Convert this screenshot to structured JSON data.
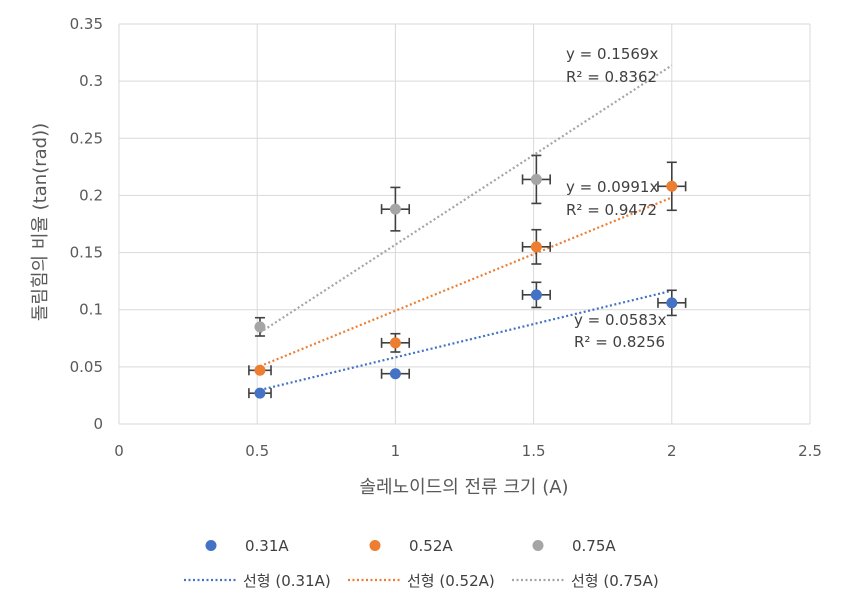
{
  "chart_data": {
    "type": "scatter",
    "title": "",
    "xlabel": "솔레노이드의 전류 크기 (A)",
    "ylabel": "돌림힘의 비율 (tan(rad))",
    "xlim": [
      0,
      2.5
    ],
    "ylim": [
      0,
      0.35
    ],
    "x_ticks": [
      "0",
      "0.5",
      "1",
      "1.5",
      "2",
      "2.5"
    ],
    "y_ticks": [
      "0",
      "0.05",
      "0.1",
      "0.15",
      "0.2",
      "0.25",
      "0.3",
      "0.35"
    ],
    "x_tick_values": [
      0,
      0.5,
      1,
      1.5,
      2,
      2.5
    ],
    "y_tick_values": [
      0,
      0.05,
      0.1,
      0.15,
      0.2,
      0.25,
      0.3,
      0.35
    ],
    "grid": true,
    "legend_position": "bottom",
    "series": [
      {
        "name": "0.31A",
        "color": "#4472C4",
        "points": [
          {
            "x": 0.51,
            "y": 0.027,
            "xerr": 0.04,
            "yerr": 0
          },
          {
            "x": 1.0,
            "y": 0.044,
            "xerr": 0.05,
            "yerr": 0
          },
          {
            "x": 1.51,
            "y": 0.113,
            "xerr": 0.05,
            "yerr": 0.011
          },
          {
            "x": 2.0,
            "y": 0.106,
            "xerr": 0.05,
            "yerr": 0.011
          }
        ],
        "trend": {
          "name": "선형 (0.31A)",
          "slope": 0.0583,
          "x_range": [
            0.51,
            2.0
          ],
          "equation": "y = 0.0583x",
          "r2": "R² = 0.8256"
        }
      },
      {
        "name": "0.52A",
        "color": "#ED7D31",
        "points": [
          {
            "x": 0.51,
            "y": 0.047,
            "xerr": 0.04,
            "yerr": 0
          },
          {
            "x": 1.0,
            "y": 0.071,
            "xerr": 0.05,
            "yerr": 0.008
          },
          {
            "x": 1.51,
            "y": 0.155,
            "xerr": 0.05,
            "yerr": 0.015
          },
          {
            "x": 2.0,
            "y": 0.208,
            "xerr": 0.05,
            "yerr": 0.021
          }
        ],
        "trend": {
          "name": "선형 (0.52A)",
          "slope": 0.0991,
          "x_range": [
            0.51,
            2.0
          ],
          "equation": "y = 0.0991x",
          "r2": "R² = 0.9472"
        }
      },
      {
        "name": "0.75A",
        "color": "#A5A5A5",
        "points": [
          {
            "x": 0.51,
            "y": 0.085,
            "xerr": 0,
            "yerr": 0.008
          },
          {
            "x": 1.0,
            "y": 0.188,
            "xerr": 0.05,
            "yerr": 0.019
          },
          {
            "x": 1.51,
            "y": 0.214,
            "xerr": 0.05,
            "yerr": 0.021
          }
        ],
        "trend": {
          "name": "선형 (0.75A)",
          "slope": 0.1569,
          "x_range": [
            0.51,
            2.0
          ],
          "equation": "y = 0.1569x",
          "r2": "R² = 0.8362"
        }
      }
    ]
  }
}
